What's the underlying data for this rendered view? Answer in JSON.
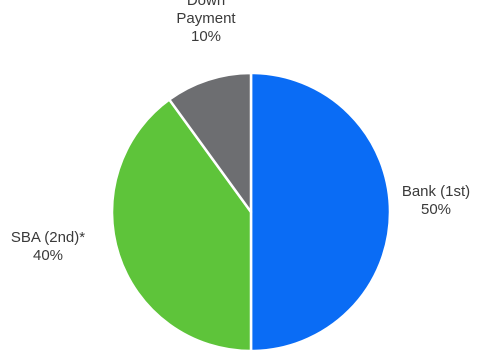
{
  "chart_data": {
    "type": "pie",
    "title": "",
    "slices": [
      {
        "label": [
          "Bank (1st)"
        ],
        "value": 50,
        "value_label": "50%",
        "color": "#0a6cf5"
      },
      {
        "label": [
          "SBA (2nd)*"
        ],
        "value": 40,
        "value_label": "40%",
        "color": "#5ec43a"
      },
      {
        "label": [
          "Down",
          "Payment"
        ],
        "value": 10,
        "value_label": "10%",
        "color": "#6d6e71"
      }
    ],
    "start_angle_deg": 0,
    "direction": "clockwise",
    "slice_border_color": "#ffffff",
    "legend": "none"
  }
}
